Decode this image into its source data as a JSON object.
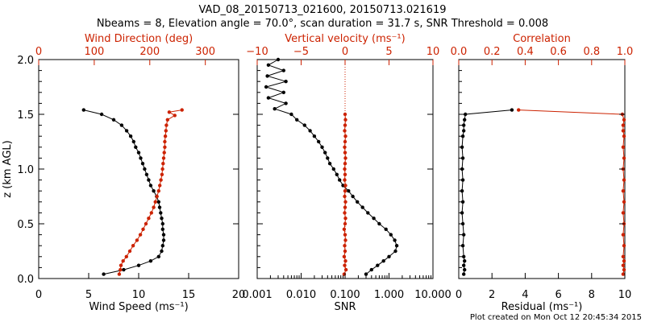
{
  "title_line1": "VAD_08_20150713_021600, 20150713.021619",
  "title_line2": "Nbeams = 8, Elevation angle = 70.0°, scan duration = 31.7 s, SNR Threshold = 0.008",
  "footer": "Plot created on Mon Oct 12 20:45:34 2015",
  "colors": {
    "primary": "#000000",
    "secondary": "#cc2200"
  },
  "chart_data": [
    {
      "type": "line",
      "panel": "wind",
      "ylabel": "z (km AGL)",
      "ylim": [
        0,
        2.0
      ],
      "yticks": [
        0.0,
        0.5,
        1.0,
        1.5,
        2.0
      ],
      "ytick_labels": [
        "0.0",
        "0.5",
        "1.0",
        "1.5",
        "2.0"
      ],
      "bottom_axis": {
        "label": "Wind Speed (ms⁻¹)",
        "xlim": [
          0,
          20
        ],
        "ticks": [
          0,
          5,
          10,
          15,
          20
        ],
        "tick_labels": [
          "0",
          "5",
          "10",
          "15",
          "20"
        ]
      },
      "top_axis": {
        "label": "Wind Direction (deg)",
        "xlim": [
          0,
          360
        ],
        "ticks": [
          0,
          100,
          200,
          300
        ],
        "tick_labels": [
          "0",
          "100",
          "200",
          "300"
        ]
      },
      "series": [
        {
          "name": "Wind Speed",
          "axis": "bottom",
          "color": "#000000",
          "z": [
            0.04,
            0.08,
            0.12,
            0.16,
            0.2,
            0.25,
            0.3,
            0.35,
            0.4,
            0.45,
            0.5,
            0.55,
            0.6,
            0.65,
            0.7,
            0.75,
            0.8,
            0.85,
            0.9,
            0.95,
            1.0,
            1.05,
            1.1,
            1.15,
            1.2,
            1.25,
            1.3,
            1.35,
            1.4,
            1.45,
            1.5,
            1.54
          ],
          "x": [
            6.5,
            8.5,
            10.0,
            11.2,
            12.0,
            12.3,
            12.4,
            12.5,
            12.5,
            12.4,
            12.4,
            12.3,
            12.2,
            12.1,
            12.0,
            11.8,
            11.5,
            11.2,
            11.0,
            10.8,
            10.6,
            10.4,
            10.2,
            10.0,
            9.7,
            9.5,
            9.2,
            8.8,
            8.3,
            7.5,
            6.3,
            4.5
          ]
        },
        {
          "name": "Wind Direction",
          "axis": "top",
          "color": "#cc2200",
          "z": [
            0.04,
            0.08,
            0.12,
            0.16,
            0.2,
            0.25,
            0.3,
            0.35,
            0.4,
            0.45,
            0.5,
            0.55,
            0.6,
            0.65,
            0.7,
            0.75,
            0.8,
            0.85,
            0.9,
            0.95,
            1.0,
            1.05,
            1.1,
            1.15,
            1.2,
            1.25,
            1.3,
            1.35,
            1.4,
            1.45,
            1.49,
            1.52,
            1.54
          ],
          "x": [
            145,
            147,
            148,
            152,
            158,
            164,
            170,
            177,
            183,
            188,
            193,
            198,
            203,
            207,
            210,
            213,
            216,
            218,
            220,
            222,
            223,
            224,
            225,
            226,
            227,
            227,
            228,
            229,
            230,
            232,
            245,
            235,
            258
          ]
        }
      ]
    },
    {
      "type": "line",
      "panel": "snr",
      "ylim": [
        0,
        2.0
      ],
      "bottom_axis": {
        "label": "SNR",
        "scale": "log",
        "xlim": [
          0.001,
          10.0
        ],
        "ticks": [
          0.001,
          0.01,
          0.1,
          1.0,
          10.0
        ],
        "tick_labels": [
          "0.001",
          "0.010",
          "0.100",
          "1.000",
          "10.000"
        ]
      },
      "top_axis": {
        "label": "Vertical velocity (ms⁻¹)",
        "xlim": [
          -10,
          10
        ],
        "ticks": [
          -10,
          -5,
          0,
          5,
          10
        ],
        "tick_labels": [
          "−10",
          "−5",
          "0",
          "5",
          "10"
        ],
        "reference_line": 0
      },
      "series": [
        {
          "name": "SNR",
          "axis": "bottom",
          "color": "#000000",
          "z": [
            0.04,
            0.08,
            0.12,
            0.16,
            0.2,
            0.25,
            0.3,
            0.35,
            0.4,
            0.45,
            0.5,
            0.55,
            0.6,
            0.65,
            0.7,
            0.75,
            0.8,
            0.85,
            0.9,
            0.95,
            1.0,
            1.05,
            1.1,
            1.15,
            1.2,
            1.25,
            1.3,
            1.35,
            1.4,
            1.45,
            1.5,
            1.55,
            1.6,
            1.65,
            1.7,
            1.75,
            1.8,
            1.85,
            1.9,
            1.95,
            2.0
          ],
          "x": [
            0.3,
            0.4,
            0.55,
            0.75,
            1.0,
            1.4,
            1.5,
            1.35,
            1.1,
            0.85,
            0.6,
            0.45,
            0.33,
            0.25,
            0.19,
            0.15,
            0.12,
            0.09,
            0.075,
            0.065,
            0.055,
            0.045,
            0.04,
            0.035,
            0.03,
            0.025,
            0.02,
            0.016,
            0.012,
            0.008,
            0.006,
            0.0025,
            0.0045,
            0.0018,
            0.004,
            0.0016,
            0.0045,
            0.0017,
            0.004,
            0.0018,
            0.003
          ]
        },
        {
          "name": "Vertical velocity",
          "axis": "top",
          "color": "#cc2200",
          "z": [
            0.04,
            0.08,
            0.12,
            0.16,
            0.2,
            0.25,
            0.3,
            0.35,
            0.4,
            0.45,
            0.5,
            0.55,
            0.6,
            0.65,
            0.7,
            0.75,
            0.8,
            0.85,
            0.9,
            0.95,
            1.0,
            1.05,
            1.1,
            1.15,
            1.2,
            1.25,
            1.3,
            1.35,
            1.4,
            1.45,
            1.5
          ],
          "x": [
            -0.1,
            0.1,
            -0.05,
            0.05,
            -0.1,
            0.0,
            -0.05,
            0.05,
            0.0,
            -0.1,
            0.0,
            0.05,
            -0.05,
            0.0,
            0.05,
            -0.05,
            0.0,
            0.05,
            -0.05,
            0.0,
            -0.05,
            0.0,
            0.05,
            0.0,
            -0.05,
            0.0,
            0.05,
            -0.05,
            0.0,
            0.05,
            0.0
          ]
        }
      ]
    },
    {
      "type": "line",
      "panel": "residual",
      "ylim": [
        0,
        2.0
      ],
      "bottom_axis": {
        "label": "Residual (ms⁻¹)",
        "xlim": [
          0,
          10
        ],
        "ticks": [
          0,
          2,
          4,
          6,
          8,
          10
        ],
        "tick_labels": [
          "0",
          "2",
          "4",
          "6",
          "8",
          "10"
        ]
      },
      "top_axis": {
        "label": "Correlation",
        "xlim": [
          0,
          1.0
        ],
        "ticks": [
          0,
          0.2,
          0.4,
          0.6,
          0.8,
          1.0
        ],
        "tick_labels": [
          "0.0",
          "0.2",
          "0.4",
          "0.6",
          "0.8",
          "1.0"
        ]
      },
      "series": [
        {
          "name": "Residual",
          "axis": "bottom",
          "color": "#000000",
          "z": [
            0.04,
            0.08,
            0.12,
            0.16,
            0.2,
            0.3,
            0.4,
            0.5,
            0.6,
            0.7,
            0.8,
            0.9,
            1.0,
            1.1,
            1.2,
            1.3,
            1.35,
            1.4,
            1.45,
            1.5,
            1.54
          ],
          "x": [
            0.3,
            0.35,
            0.3,
            0.35,
            0.3,
            0.25,
            0.3,
            0.25,
            0.2,
            0.25,
            0.2,
            0.25,
            0.2,
            0.25,
            0.2,
            0.25,
            0.3,
            0.3,
            0.35,
            0.4,
            3.2
          ]
        },
        {
          "name": "Correlation",
          "axis": "top",
          "color": "#cc2200",
          "z": [
            0.04,
            0.08,
            0.12,
            0.16,
            0.2,
            0.3,
            0.4,
            0.5,
            0.6,
            0.7,
            0.8,
            0.9,
            1.0,
            1.1,
            1.2,
            1.3,
            1.35,
            1.4,
            1.45,
            1.5,
            1.54
          ],
          "x": [
            0.99,
            0.995,
            0.99,
            0.995,
            0.99,
            0.995,
            0.99,
            0.995,
            0.99,
            0.995,
            0.99,
            0.995,
            0.99,
            0.995,
            0.99,
            0.995,
            0.99,
            0.99,
            0.995,
            0.985,
            0.36
          ]
        }
      ]
    }
  ]
}
